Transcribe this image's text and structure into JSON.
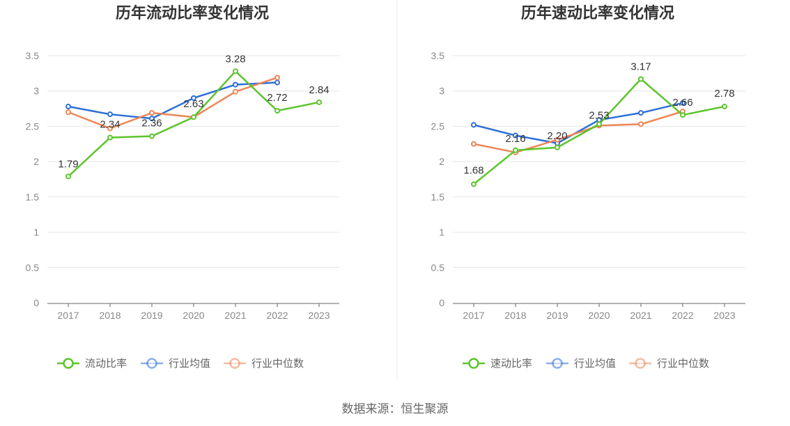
{
  "source": "数据来源：恒生聚源",
  "chart_data": [
    {
      "type": "line",
      "title": "历年流动比率变化情况",
      "categories": [
        "2017",
        "2018",
        "2019",
        "2020",
        "2021",
        "2022",
        "2023"
      ],
      "ylim": [
        0,
        3.5
      ],
      "yticks": [
        "0",
        "0.5",
        "1",
        "1.5",
        "2",
        "2.5",
        "3",
        "3.5"
      ],
      "grid": true,
      "legend_position": "bottom",
      "series": [
        {
          "name": "流动比率",
          "color": "#5cc42b",
          "values": [
            1.79,
            2.34,
            2.36,
            2.63,
            3.28,
            2.72,
            2.84
          ],
          "labels": [
            "1.79",
            "2.34",
            "2.36",
            "2.63",
            "3.28",
            "2.72",
            "2.84"
          ]
        },
        {
          "name": "行业均值",
          "color": "#2e6fd6",
          "values": [
            2.78,
            2.67,
            2.61,
            2.9,
            3.09,
            3.12,
            null
          ]
        },
        {
          "name": "行业中位数",
          "color": "#ee8656",
          "values": [
            2.7,
            2.47,
            2.69,
            2.63,
            2.99,
            3.19,
            null
          ]
        }
      ]
    },
    {
      "type": "line",
      "title": "历年速动比率变化情况",
      "categories": [
        "2017",
        "2018",
        "2019",
        "2020",
        "2021",
        "2022",
        "2023"
      ],
      "ylim": [
        0,
        3.5
      ],
      "yticks": [
        "0",
        "0.5",
        "1",
        "1.5",
        "2",
        "2.5",
        "3",
        "3.5"
      ],
      "grid": true,
      "legend_position": "bottom",
      "series": [
        {
          "name": "速动比率",
          "color": "#5cc42b",
          "values": [
            1.68,
            2.16,
            2.2,
            2.53,
            3.17,
            2.66,
            2.78
          ],
          "labels": [
            "1.68",
            "2.16",
            "2.20",
            "2.53",
            "3.17",
            "2.66",
            "2.78"
          ]
        },
        {
          "name": "行业均值",
          "color": "#2e6fd6",
          "values": [
            2.52,
            2.37,
            2.26,
            2.59,
            2.69,
            2.83,
            null
          ]
        },
        {
          "name": "行业中位数",
          "color": "#ee8656",
          "values": [
            2.25,
            2.13,
            2.31,
            2.51,
            2.53,
            2.71,
            null
          ]
        }
      ]
    }
  ]
}
